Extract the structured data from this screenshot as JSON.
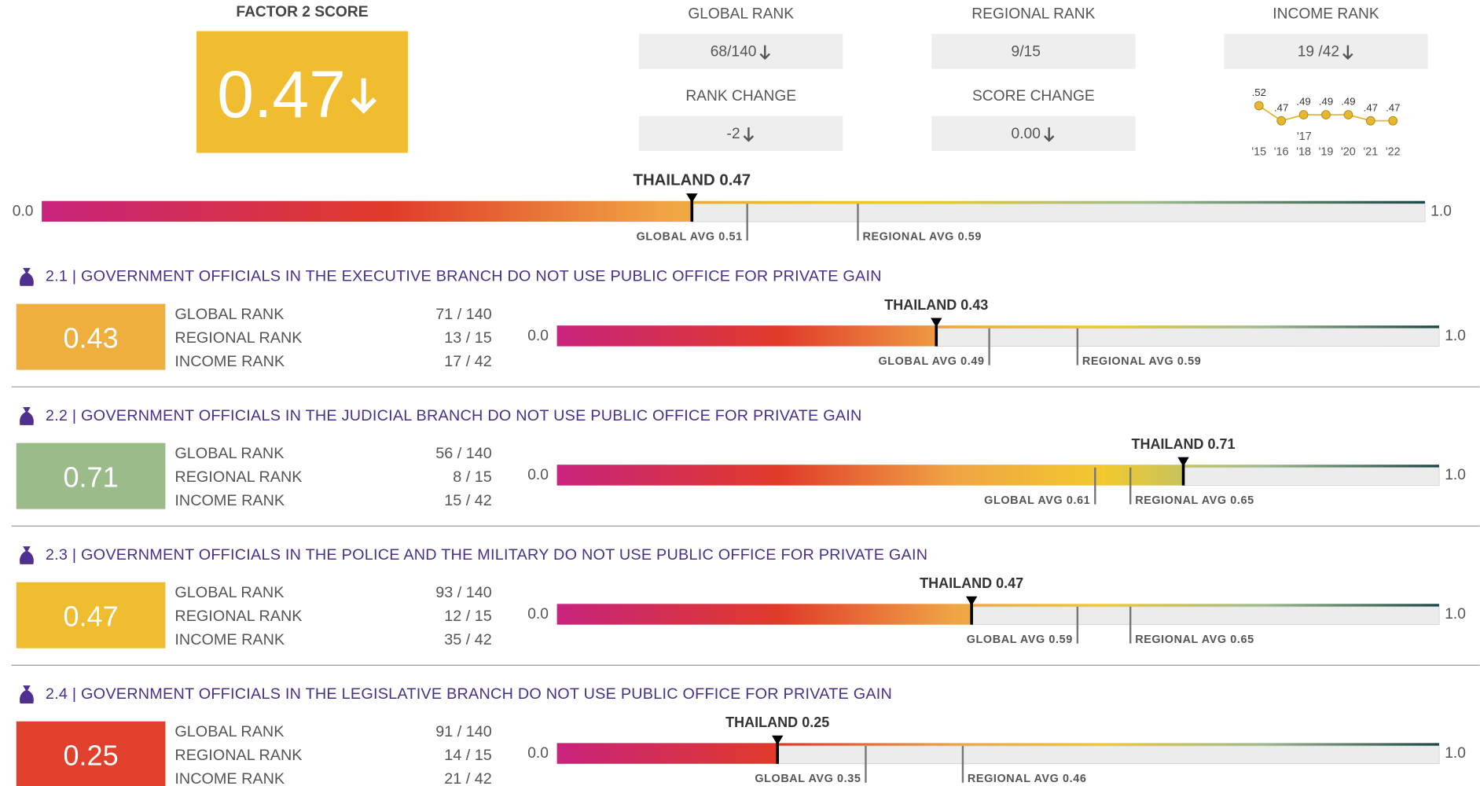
{
  "header": {
    "score_label": "FACTOR 2 SCORE",
    "score": 0.47,
    "score_color": "#efbd2f",
    "score_trend": "down",
    "global_avg": 0.51,
    "regional_avg": 0.59,
    "stats": [
      {
        "label": "GLOBAL RANK",
        "value": "68/140",
        "trend": "down"
      },
      {
        "label": "REGIONAL RANK",
        "value": "9/15"
      },
      {
        "label": "INCOME RANK",
        "value": "19 /42",
        "trend": "down"
      },
      {
        "label": "RANK CHANGE",
        "value": -2,
        "trend": "down"
      },
      {
        "label": "SCORE CHANGE",
        "value": "0.00",
        "trend": "down"
      }
    ],
    "trend": {
      "categories": [
        "'15",
        "'16",
        "'18",
        "'19",
        "'20",
        "'21",
        "'22"
      ],
      "values": [
        0.52,
        0.47,
        0.49,
        0.49,
        0.49,
        0.47,
        0.47
      ],
      "value_labels": [
        ".52",
        ".47",
        ".49",
        ".49",
        ".49",
        ".47",
        ".47"
      ],
      "annotation": "'17",
      "color": "#e8b72e"
    }
  },
  "scale": {
    "min": {
      "value": 0,
      "label": "0.0"
    },
    "max": {
      "value": 1,
      "label": "1.0"
    }
  },
  "marker_label": "THAILAND",
  "global_avg_label": "GLOBAL AVG",
  "regional_avg_label": "REGIONAL AVG",
  "rank_labels": [
    "GLOBAL RANK",
    "REGIONAL RANK",
    "INCOME RANK"
  ],
  "subfactors": [
    {
      "title": "2.1 | GOVERNMENT OFFICIALS IN THE EXECUTIVE BRANCH DO NOT USE PUBLIC OFFICE FOR PRIVATE GAIN",
      "score": 0.43,
      "color": "#efaf3f",
      "ranks": [
        "71 / 140",
        "13 / 15",
        "17 / 42"
      ],
      "global_avg": 0.49,
      "regional_avg": 0.59
    },
    {
      "title": "2.2 | GOVERNMENT OFFICIALS IN THE JUDICIAL BRANCH DO NOT USE PUBLIC OFFICE FOR PRIVATE GAIN",
      "score": 0.71,
      "color": "#9bbb8b",
      "ranks": [
        "56 / 140",
        "8 / 15",
        "15 / 42"
      ],
      "global_avg": 0.61,
      "regional_avg": 0.65
    },
    {
      "title": "2.3 | GOVERNMENT OFFICIALS IN THE POLICE AND THE MILITARY DO NOT USE PUBLIC OFFICE FOR PRIVATE GAIN",
      "score": 0.47,
      "color": "#efbd2f",
      "ranks": [
        "93 / 140",
        "12 / 15",
        "35 / 42"
      ],
      "global_avg": 0.59,
      "regional_avg": 0.65
    },
    {
      "title": "2.4 | GOVERNMENT OFFICIALS IN THE LEGISLATIVE BRANCH DO NOT USE PUBLIC OFFICE FOR PRIVATE GAIN",
      "score": 0.25,
      "color": "#e0402c",
      "ranks": [
        "91 / 140",
        "14 / 15",
        "21 / 42"
      ],
      "global_avg": 0.35,
      "regional_avg": 0.46
    }
  ]
}
